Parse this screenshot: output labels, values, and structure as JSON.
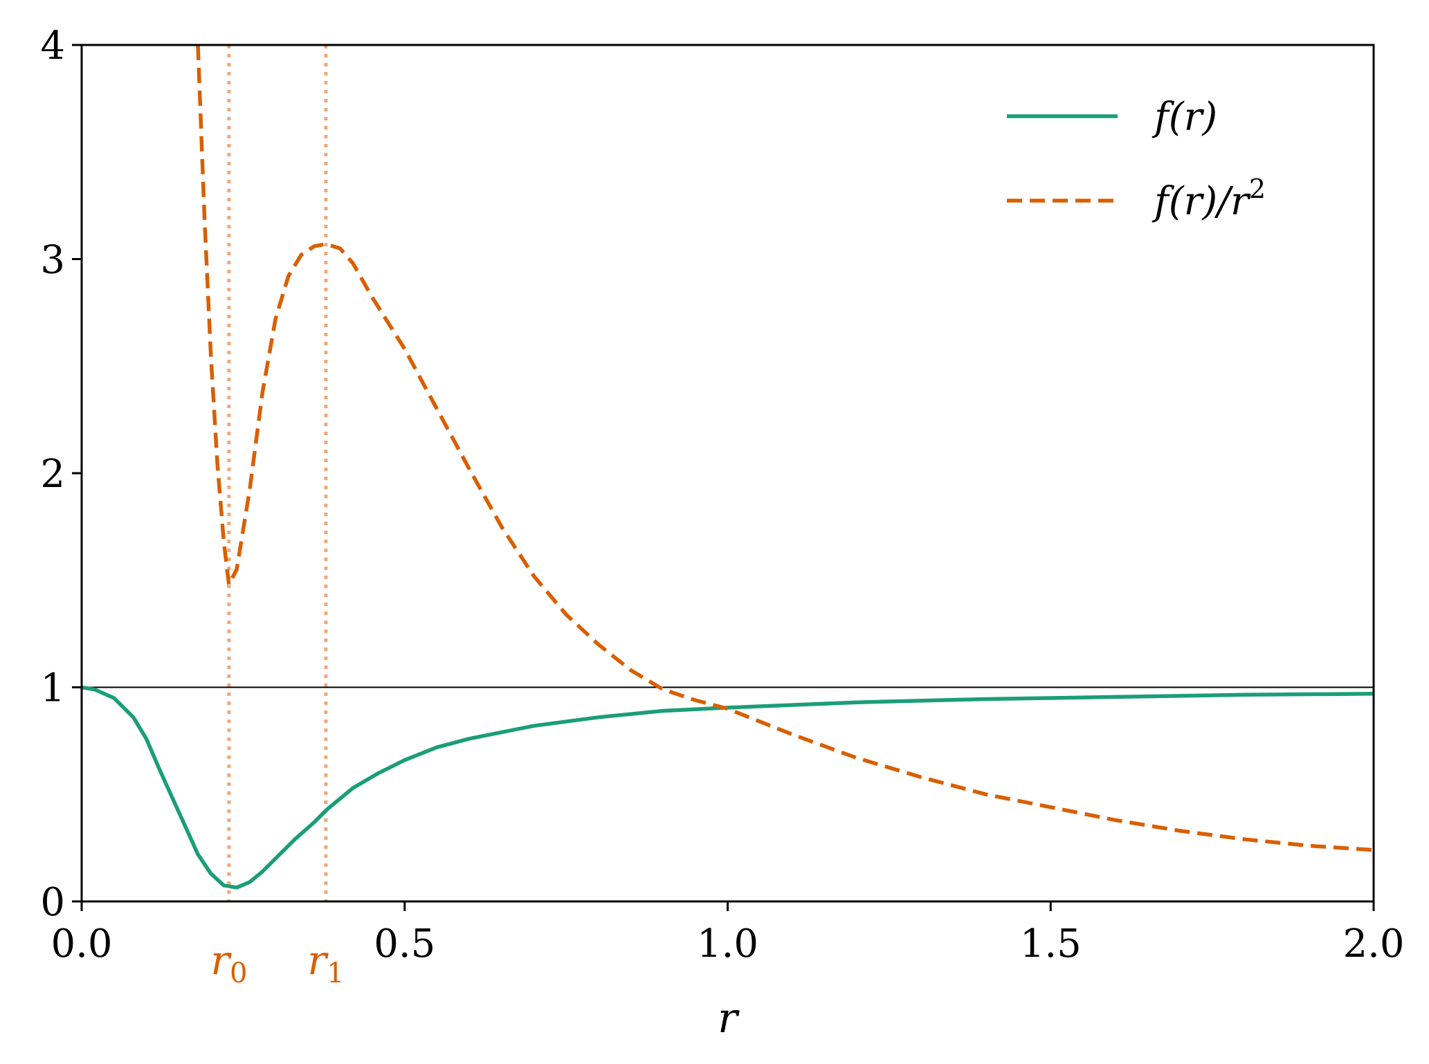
{
  "chart_data": {
    "type": "line",
    "xlabel": "r",
    "xlim": [
      0,
      2
    ],
    "ylim": [
      0,
      4
    ],
    "x_ticks": [
      {
        "value": 0.0,
        "label": "0.0"
      },
      {
        "value": 0.5,
        "label": "0.5"
      },
      {
        "value": 1.0,
        "label": "1.0"
      },
      {
        "value": 1.5,
        "label": "1.5"
      },
      {
        "value": 2.0,
        "label": "2.0"
      }
    ],
    "y_ticks": [
      {
        "value": 0,
        "label": "0"
      },
      {
        "value": 1,
        "label": "1"
      },
      {
        "value": 2,
        "label": "2"
      },
      {
        "value": 3,
        "label": "3"
      },
      {
        "value": 4,
        "label": "4"
      }
    ],
    "grid": false,
    "legend_position": "top-right",
    "reference_line": {
      "y": 1,
      "color": "#000000"
    },
    "markers": [
      {
        "x": 0.228,
        "label": "r",
        "subscript": "0",
        "color": "#d95f02",
        "line_color": "#f0a878"
      },
      {
        "x": 0.378,
        "label": "r",
        "subscript": "1",
        "color": "#d95f02",
        "line_color": "#f0a878"
      }
    ],
    "series": [
      {
        "name": "f(r)",
        "style": "solid",
        "color": "#1b9e77",
        "x": [
          0.0,
          0.02,
          0.05,
          0.08,
          0.1,
          0.12,
          0.15,
          0.18,
          0.2,
          0.22,
          0.24,
          0.26,
          0.28,
          0.3,
          0.33,
          0.36,
          0.38,
          0.42,
          0.46,
          0.5,
          0.55,
          0.6,
          0.7,
          0.8,
          0.9,
          1.0,
          1.2,
          1.4,
          1.6,
          1.8,
          2.0
        ],
        "y": [
          1.0,
          0.99,
          0.95,
          0.86,
          0.76,
          0.62,
          0.42,
          0.22,
          0.13,
          0.075,
          0.065,
          0.09,
          0.14,
          0.2,
          0.29,
          0.37,
          0.43,
          0.53,
          0.6,
          0.66,
          0.72,
          0.76,
          0.82,
          0.86,
          0.89,
          0.905,
          0.93,
          0.945,
          0.955,
          0.965,
          0.97
        ]
      },
      {
        "name": "f(r)/r²",
        "style": "dashed",
        "color": "#d95f02",
        "x": [
          0.18,
          0.19,
          0.2,
          0.21,
          0.22,
          0.228,
          0.24,
          0.26,
          0.28,
          0.3,
          0.32,
          0.34,
          0.36,
          0.378,
          0.4,
          0.42,
          0.45,
          0.5,
          0.55,
          0.6,
          0.65,
          0.7,
          0.75,
          0.8,
          0.85,
          0.9,
          0.95,
          1.0,
          1.1,
          1.2,
          1.3,
          1.4,
          1.5,
          1.6,
          1.7,
          1.8,
          1.9,
          2.0
        ],
        "y": [
          4.0,
          3.2,
          2.55,
          2.05,
          1.68,
          1.48,
          1.55,
          1.92,
          2.38,
          2.72,
          2.92,
          3.02,
          3.06,
          3.07,
          3.05,
          2.98,
          2.82,
          2.58,
          2.3,
          2.02,
          1.75,
          1.52,
          1.34,
          1.2,
          1.08,
          0.99,
          0.94,
          0.9,
          0.78,
          0.67,
          0.58,
          0.5,
          0.44,
          0.38,
          0.33,
          0.29,
          0.26,
          0.24
        ]
      }
    ]
  }
}
